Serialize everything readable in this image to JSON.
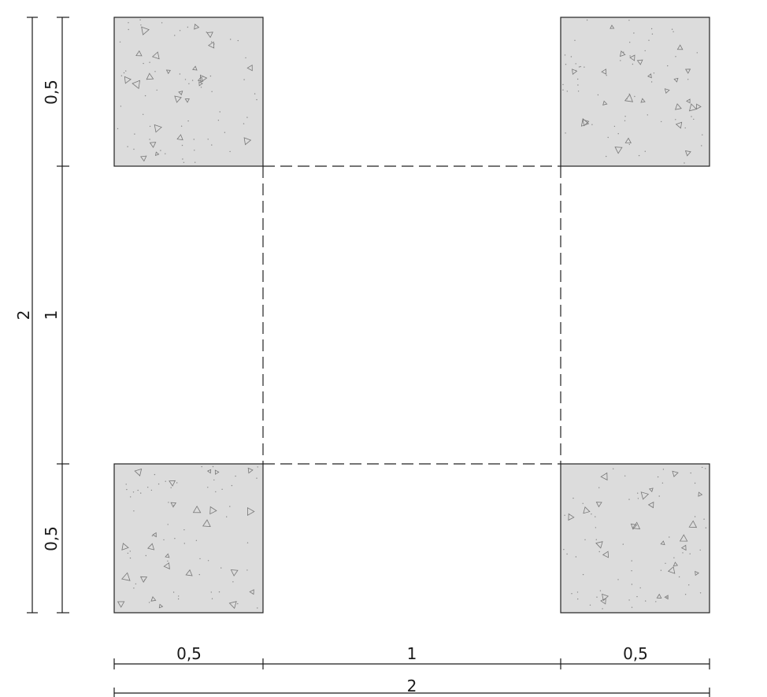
{
  "dimensions": {
    "bottom_segments": [
      "0,5",
      "1",
      "0,5"
    ],
    "bottom_total": "2",
    "left_segments": [
      "0,5",
      "1",
      "0,5"
    ],
    "left_total": "2"
  },
  "colors": {
    "concrete_fill": "#dcdcdc",
    "outline": "#222222",
    "aggregate": "#777777"
  }
}
